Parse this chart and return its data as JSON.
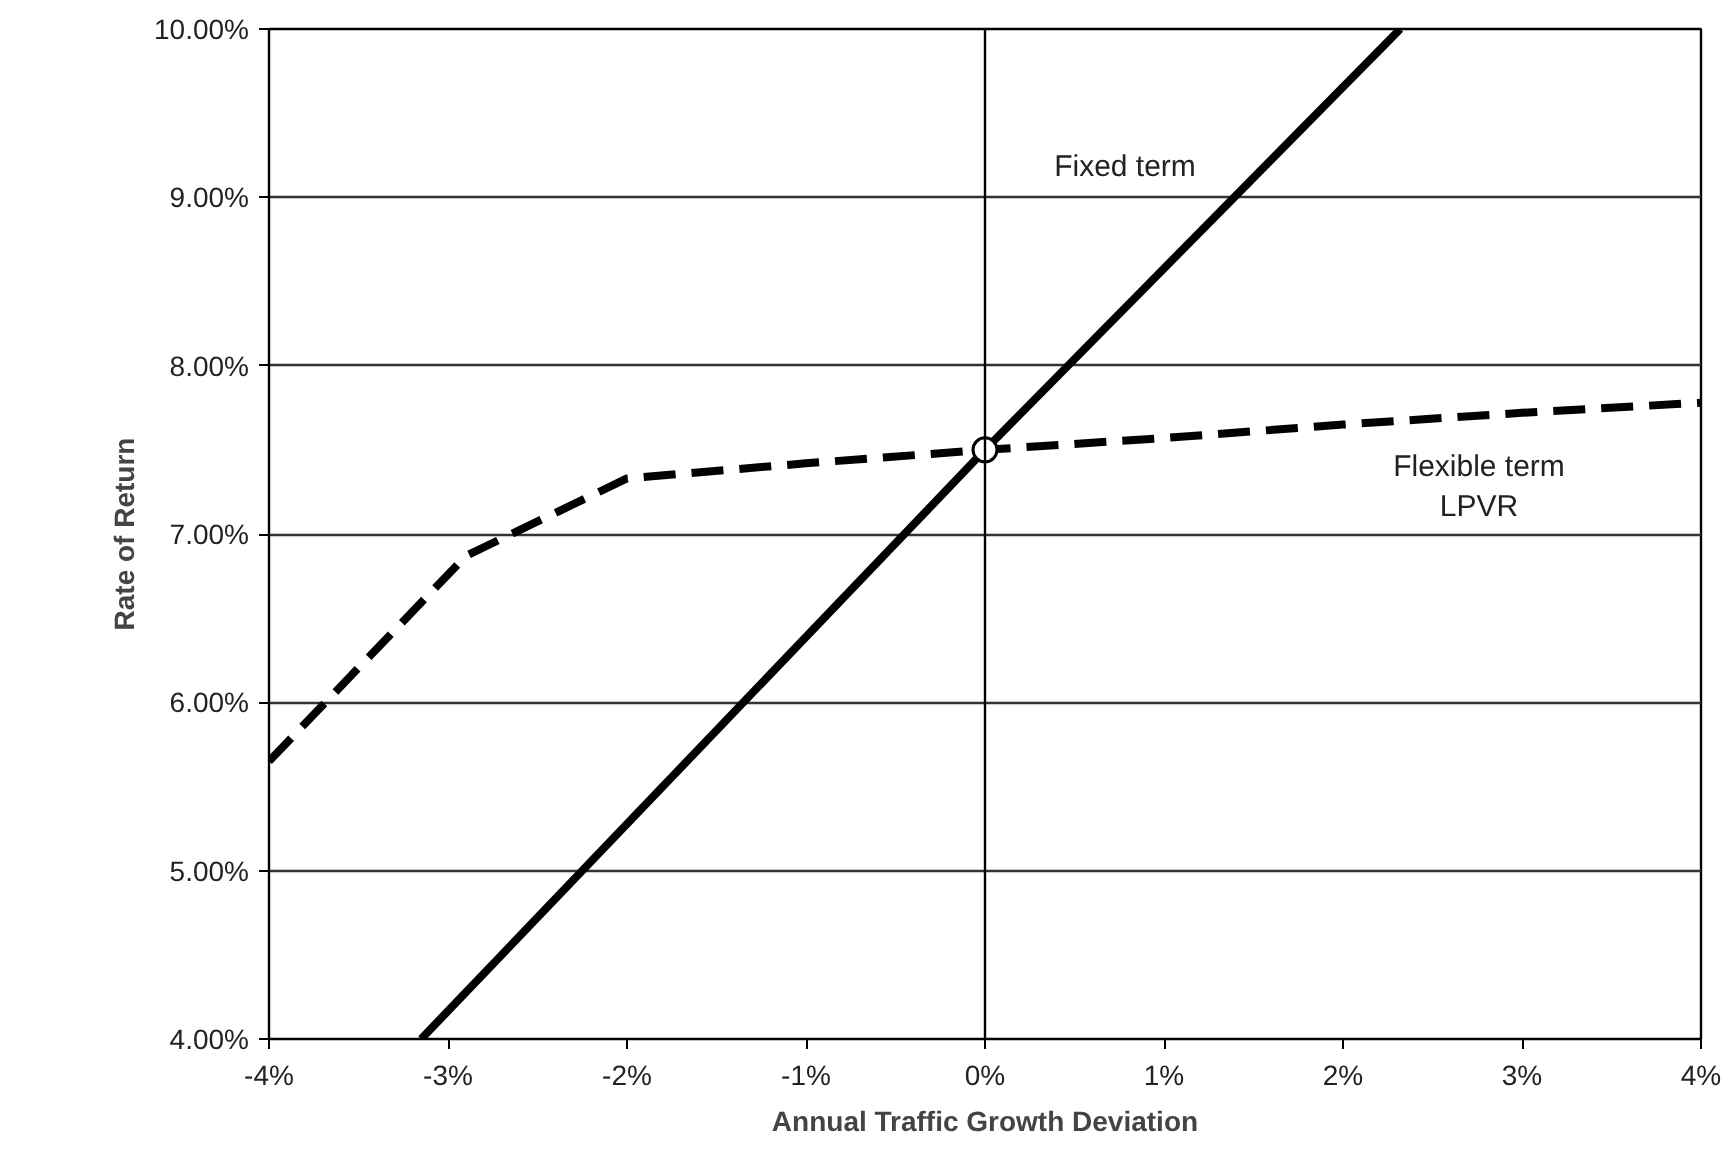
{
  "chart_data": {
    "type": "line",
    "xlabel": "Annual Traffic Growth Deviation",
    "ylabel": "Rate of Return",
    "xlim": [
      -4,
      4
    ],
    "ylim": [
      4,
      10
    ],
    "xticks": [
      {
        "value": -4,
        "label": "-4%"
      },
      {
        "value": -3,
        "label": "-3%"
      },
      {
        "value": -2,
        "label": "-2%"
      },
      {
        "value": -1,
        "label": "-1%"
      },
      {
        "value": 0,
        "label": "0%"
      },
      {
        "value": 1,
        "label": "1%"
      },
      {
        "value": 2,
        "label": "2%"
      },
      {
        "value": 3,
        "label": "3%"
      },
      {
        "value": 4,
        "label": "4%"
      }
    ],
    "yticks": [
      {
        "value": 4,
        "label": "4.00%"
      },
      {
        "value": 5,
        "label": "5.00%"
      },
      {
        "value": 6,
        "label": "6.00%"
      },
      {
        "value": 7,
        "label": "7.00%"
      },
      {
        "value": 8,
        "label": "8.00%"
      },
      {
        "value": 9,
        "label": "9.00%"
      },
      {
        "value": 10,
        "label": "10.00%"
      }
    ],
    "grid": "y",
    "ref_lines": [
      {
        "axis": "x",
        "value": 0,
        "color": "#000000"
      }
    ],
    "series": [
      {
        "line_style": "solid",
        "color": "#000000",
        "x": [
          -3.15,
          0,
          2.32
        ],
        "values": [
          4,
          7.5,
          10
        ]
      },
      {
        "line_style": "dashed",
        "color": "#000000",
        "x": [
          -4,
          -2.9,
          -2.0,
          -1,
          0,
          1,
          2,
          3,
          4
        ],
        "values": [
          5.65,
          6.87,
          7.33,
          7.42,
          7.5,
          7.57,
          7.65,
          7.72,
          7.78
        ]
      },
      {
        "type": "scatter",
        "marker": "circle",
        "color": "#ffffff",
        "x": [
          0
        ],
        "values": [
          7.5
        ]
      }
    ],
    "annotations": [
      "Fixed term",
      "Flexible term\nLPVR"
    ]
  }
}
